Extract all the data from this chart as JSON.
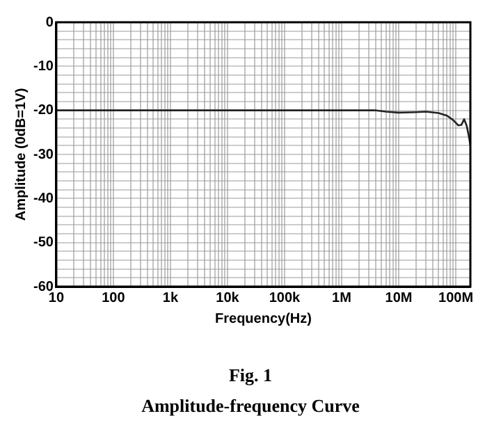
{
  "chart_data": {
    "type": "line",
    "title": "Fig. 1",
    "subtitle": "Amplitude-frequency Curve",
    "xlabel": "Frequency(Hz)",
    "ylabel": "Amplitude (0dB=1V)",
    "log": "x",
    "grid": true,
    "legend": false,
    "marker": "none",
    "line_style": "solid",
    "xlim": [
      10,
      180000000
    ],
    "ylim": [
      -60,
      0
    ],
    "xticks": [
      {
        "value": 10,
        "label": "10"
      },
      {
        "value": 20,
        "label": null
      },
      {
        "value": 30,
        "label": null
      },
      {
        "value": 40,
        "label": null
      },
      {
        "value": 50,
        "label": null
      },
      {
        "value": 60,
        "label": null
      },
      {
        "value": 70,
        "label": null
      },
      {
        "value": 80,
        "label": null
      },
      {
        "value": 90,
        "label": null
      },
      {
        "value": 100,
        "label": "100"
      },
      {
        "value": 200,
        "label": null
      },
      {
        "value": 300,
        "label": null
      },
      {
        "value": 400,
        "label": null
      },
      {
        "value": 500,
        "label": null
      },
      {
        "value": 600,
        "label": null
      },
      {
        "value": 700,
        "label": null
      },
      {
        "value": 800,
        "label": null
      },
      {
        "value": 900,
        "label": null
      },
      {
        "value": 1000,
        "label": "1k"
      },
      {
        "value": 2000,
        "label": null
      },
      {
        "value": 3000,
        "label": null
      },
      {
        "value": 4000,
        "label": null
      },
      {
        "value": 5000,
        "label": null
      },
      {
        "value": 6000,
        "label": null
      },
      {
        "value": 7000,
        "label": null
      },
      {
        "value": 8000,
        "label": null
      },
      {
        "value": 9000,
        "label": null
      },
      {
        "value": 10000,
        "label": "10k"
      },
      {
        "value": 20000,
        "label": null
      },
      {
        "value": 30000,
        "label": null
      },
      {
        "value": 40000,
        "label": null
      },
      {
        "value": 50000,
        "label": null
      },
      {
        "value": 60000,
        "label": null
      },
      {
        "value": 70000,
        "label": null
      },
      {
        "value": 80000,
        "label": null
      },
      {
        "value": 90000,
        "label": null
      },
      {
        "value": 100000,
        "label": "100k"
      },
      {
        "value": 200000,
        "label": null
      },
      {
        "value": 300000,
        "label": null
      },
      {
        "value": 400000,
        "label": null
      },
      {
        "value": 500000,
        "label": null
      },
      {
        "value": 600000,
        "label": null
      },
      {
        "value": 700000,
        "label": null
      },
      {
        "value": 800000,
        "label": null
      },
      {
        "value": 900000,
        "label": null
      },
      {
        "value": 1000000,
        "label": "1M"
      },
      {
        "value": 2000000,
        "label": null
      },
      {
        "value": 3000000,
        "label": null
      },
      {
        "value": 4000000,
        "label": null
      },
      {
        "value": 5000000,
        "label": null
      },
      {
        "value": 6000000,
        "label": null
      },
      {
        "value": 7000000,
        "label": null
      },
      {
        "value": 8000000,
        "label": null
      },
      {
        "value": 9000000,
        "label": null
      },
      {
        "value": 10000000,
        "label": "10M"
      },
      {
        "value": 20000000,
        "label": null
      },
      {
        "value": 30000000,
        "label": null
      },
      {
        "value": 40000000,
        "label": null
      },
      {
        "value": 50000000,
        "label": null
      },
      {
        "value": 60000000,
        "label": null
      },
      {
        "value": 70000000,
        "label": null
      },
      {
        "value": 80000000,
        "label": null
      },
      {
        "value": 90000000,
        "label": null
      },
      {
        "value": 100000000,
        "label": "100M"
      }
    ],
    "yticks": [
      -60,
      {
        "value": -58,
        "label": null
      },
      {
        "value": -56,
        "label": null
      },
      {
        "value": -54,
        "label": null
      },
      {
        "value": -52,
        "label": null
      },
      -50,
      {
        "value": -48,
        "label": null
      },
      {
        "value": -46,
        "label": null
      },
      {
        "value": -44,
        "label": null
      },
      {
        "value": -42,
        "label": null
      },
      -40,
      {
        "value": -38,
        "label": null
      },
      {
        "value": -36,
        "label": null
      },
      {
        "value": -34,
        "label": null
      },
      {
        "value": -32,
        "label": null
      },
      -30,
      {
        "value": -28,
        "label": null
      },
      {
        "value": -26,
        "label": null
      },
      {
        "value": -24,
        "label": null
      },
      {
        "value": -22,
        "label": null
      },
      -20,
      {
        "value": -18,
        "label": null
      },
      {
        "value": -16,
        "label": null
      },
      {
        "value": -14,
        "label": null
      },
      {
        "value": -12,
        "label": null
      },
      -10,
      {
        "value": -8,
        "label": null
      },
      {
        "value": -6,
        "label": null
      },
      {
        "value": -4,
        "label": null
      },
      {
        "value": -2,
        "label": null
      },
      0
    ],
    "series": [
      {
        "color": "#222222",
        "x": [
          10,
          100,
          1000,
          10000,
          100000,
          1000000,
          4000000,
          6000000,
          10000000,
          20000000,
          30000000,
          50000000,
          70000000,
          90000000,
          110000000,
          125000000,
          140000000,
          155000000,
          170000000,
          180000000
        ],
        "values": [
          -20,
          -20,
          -20,
          -20,
          -20,
          -20,
          -20,
          -20.3,
          -20.5,
          -20.4,
          -20.3,
          -20.6,
          -21.2,
          -22.2,
          -23.4,
          -23.3,
          -22,
          -23.5,
          -26,
          -28
        ]
      }
    ]
  }
}
